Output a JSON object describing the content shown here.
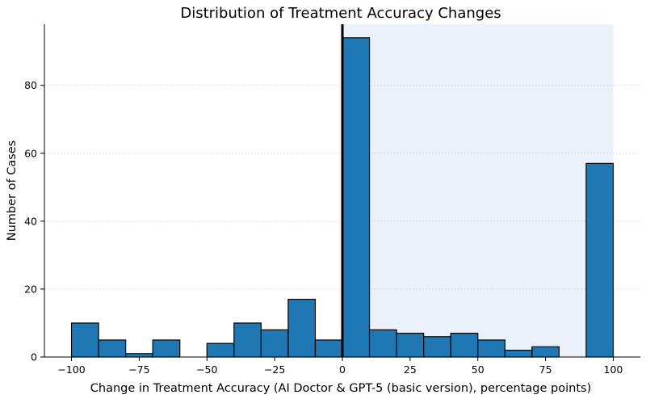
{
  "chart_data": {
    "type": "bar",
    "title": "Distribution of Treatment Accuracy Changes",
    "xlabel": "Change in Treatment Accuracy (AI Doctor & GPT-5 (basic version), percentage points)",
    "ylabel": "Number of Cases",
    "xlim": [
      -110,
      110
    ],
    "ylim": [
      0,
      98
    ],
    "x_ticks": [
      -100,
      -75,
      -50,
      -25,
      0,
      25,
      50,
      75,
      100
    ],
    "x_tick_labels": [
      "−100",
      "−75",
      "−50",
      "−25",
      "0",
      "25",
      "50",
      "75",
      "100"
    ],
    "y_ticks": [
      0,
      20,
      40,
      60,
      80
    ],
    "y_tick_labels": [
      "0",
      "20",
      "40",
      "60",
      "80"
    ],
    "grid": "horizontal dotted",
    "bin_edges": [
      -100,
      -90,
      -80,
      -70,
      -60,
      -50,
      -40,
      -30,
      -20,
      -10,
      0,
      10,
      20,
      30,
      40,
      50,
      60,
      70,
      80,
      90,
      100
    ],
    "values": [
      10,
      5,
      1,
      5,
      0,
      4,
      10,
      8,
      17,
      5,
      94,
      8,
      7,
      6,
      7,
      5,
      2,
      3,
      0,
      57
    ],
    "highlight_region": [
      0,
      100
    ],
    "zero_line": 0,
    "colors": {
      "bar": "#1f77b4",
      "bar_edge": "#000000",
      "highlight": "#eaf1fa",
      "grid": "#cccccc",
      "zero_line": "#000000"
    }
  }
}
